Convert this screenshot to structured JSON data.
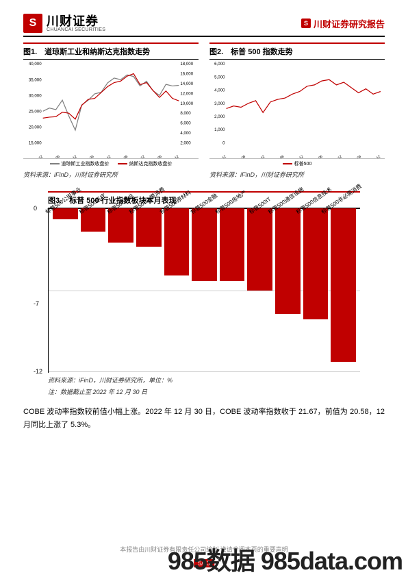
{
  "header": {
    "company_cn": "川财证券",
    "company_en": "CHUANCAI SECURITIES",
    "report_label": "川财证券研究报告"
  },
  "fig1": {
    "title": "图1.　道琼斯工业和纳斯达克指数走势",
    "type": "line",
    "x_labels": [
      "2019-12",
      "2019-06",
      "2019-12",
      "2020-06",
      "2020-12",
      "2021-06",
      "2021-12",
      "2022-06",
      "2022-12"
    ],
    "left_axis": {
      "min": 15000,
      "max": 40000,
      "ticks": [
        15000,
        20000,
        25000,
        30000,
        35000,
        40000
      ]
    },
    "right_axis": {
      "min": 2000,
      "max": 18000,
      "ticks": [
        2000,
        4000,
        6000,
        8000,
        10000,
        12000,
        14000,
        16000,
        18000
      ]
    },
    "series": [
      {
        "name": "道琼斯工业指数收盘价",
        "color": "#7f7f7f",
        "y": [
          25000,
          26000,
          25500,
          28500,
          23500,
          19000,
          27000,
          28500,
          30500,
          31000,
          34000,
          35500,
          35000,
          36500,
          36000,
          33000,
          34500,
          31500,
          30000,
          33500,
          33000,
          33200
        ]
      },
      {
        "name": "纳斯达克指数收盘价",
        "color": "#c00000",
        "y_right": [
          7000,
          7200,
          7300,
          8200,
          8000,
          6800,
          9600,
          10800,
          11000,
          12200,
          13400,
          14200,
          14500,
          15500,
          16000,
          13800,
          14200,
          12600,
          11200,
          12500,
          11000,
          10500
        ]
      }
    ],
    "source": "资料来源：iFinD，川财证券研究所"
  },
  "fig2": {
    "title": "图2.　标普 500 指数走势",
    "type": "line",
    "x_labels": [
      "2019-12",
      "2019-06",
      "2019-12",
      "2020-06",
      "2020-12",
      "2021-06",
      "2021-12",
      "2022-06",
      "2022-12"
    ],
    "y_axis": {
      "min": 0,
      "max": 6000,
      "ticks": [
        0,
        1000,
        2000,
        3000,
        4000,
        5000,
        6000
      ]
    },
    "series": [
      {
        "name": "标普500",
        "color": "#c00000",
        "y": [
          2600,
          2800,
          2700,
          3000,
          3200,
          2300,
          3100,
          3300,
          3400,
          3700,
          3900,
          4300,
          4400,
          4700,
          4800,
          4400,
          4600,
          4200,
          3800,
          4100,
          3700,
          3900
        ]
      }
    ],
    "source": "资料来源：iFinD，川财证券研究所"
  },
  "fig3": {
    "title": "图3.　标普 500 行业指数板块本月表现",
    "type": "bar",
    "y_axis": {
      "min": -12,
      "max": 0,
      "ticks": [
        0,
        -7,
        -12
      ]
    },
    "bar_color": "#c00000",
    "categories": [
      "标普500公用事业",
      "标普500医疗",
      "标普500工业",
      "标普500主要消费",
      "标普500原材料",
      "标普500金融",
      "标普500房地产",
      "标普500IT",
      "标普500通信设施",
      "标普500信息技术",
      "标普500非必需消费"
    ],
    "values": [
      -0.8,
      -1.7,
      -2.5,
      -2.8,
      -4.9,
      -5.3,
      -5.3,
      -6.0,
      -7.7,
      -8.1,
      -11.2
    ],
    "source": "资料来源：iFinD，川财证券研究所，单位：%",
    "note": "注：数据截止至 2022 年 12 月 30 日"
  },
  "paragraph": "COBE 波动率指数较前值小幅上涨。2022 年 12 月 30 日，COBE 波动率指数收于 21.67，前值为 20.58，12 月同比上涨了 5.3%。",
  "footer": "本报告由川财证券有限责任公司编制 谨请参阅本页的重要声明",
  "page": "5/13",
  "watermark": "985数据 985data.com"
}
